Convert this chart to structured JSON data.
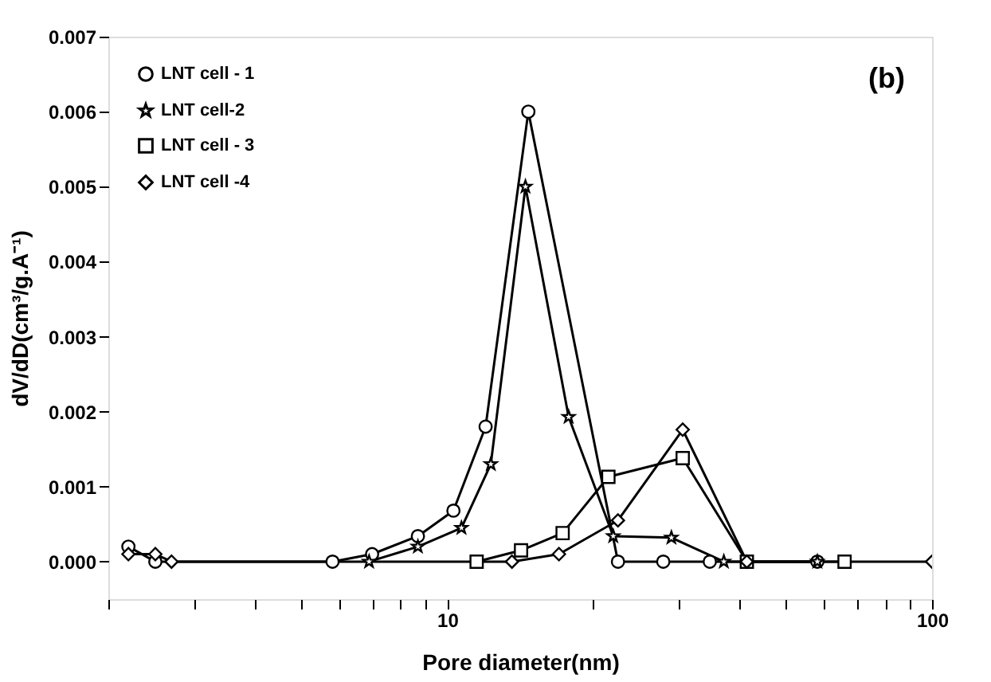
{
  "chart_data": {
    "type": "line",
    "xlabel": "Pore diameter(nm)",
    "ylabel": "dV/dD(cm³/g.A⁻¹)",
    "annotations": [
      "(b)"
    ],
    "log": "x",
    "xlim": [
      2,
      100
    ],
    "ylim": [
      -0.0005,
      0.007
    ],
    "xticks": [
      {
        "value": 2,
        "label": null
      },
      {
        "value": 3,
        "label": null
      },
      {
        "value": 4,
        "label": null
      },
      {
        "value": 5,
        "label": null
      },
      {
        "value": 6,
        "label": null
      },
      {
        "value": 7,
        "label": null
      },
      {
        "value": 8,
        "label": null
      },
      {
        "value": 9,
        "label": null
      },
      10,
      {
        "value": 20,
        "label": null
      },
      {
        "value": 30,
        "label": null
      },
      {
        "value": 40,
        "label": null
      },
      {
        "value": 50,
        "label": null
      },
      {
        "value": 60,
        "label": null
      },
      {
        "value": 70,
        "label": null
      },
      {
        "value": 80,
        "label": null
      },
      {
        "value": 90,
        "label": null
      },
      100
    ],
    "yticks": [
      {
        "value": 0,
        "label": "0.000"
      },
      {
        "value": 0.001,
        "label": "0.001"
      },
      {
        "value": 0.002,
        "label": "0.002"
      },
      {
        "value": 0.003,
        "label": "0.003"
      },
      {
        "value": 0.004,
        "label": "0.004"
      },
      {
        "value": 0.005,
        "label": "0.005"
      },
      {
        "value": 0.006,
        "label": "0.006"
      },
      {
        "value": 0.007,
        "label": "0.007"
      }
    ],
    "grid": false,
    "legend": "top left",
    "line_style": "solid",
    "series": [
      {
        "name": "LNT cell - 1",
        "color": "#000000",
        "marker": "circle",
        "x": [
          2.2,
          2.5,
          5.8,
          7.0,
          8.7,
          10.3,
          12.0,
          14.7,
          22.5,
          27.9,
          34.8,
          58
        ],
        "values": [
          0.0002,
          0,
          0,
          0.0001,
          0.00034,
          0.00068,
          0.0018,
          0.006,
          0,
          0,
          0,
          0
        ]
      },
      {
        "name": "LNT cell-2",
        "color": "#000000",
        "marker": "star",
        "x": [
          6.9,
          8.7,
          10.7,
          12.3,
          14.5,
          17.8,
          22.0,
          29.0,
          37.2,
          58
        ],
        "values": [
          0,
          0.0002,
          0.00045,
          0.0013,
          0.005,
          0.00193,
          0.00034,
          0.00032,
          0,
          0
        ]
      },
      {
        "name": "LNT cell - 3",
        "color": "#000000",
        "marker": "square",
        "x": [
          11.5,
          14.2,
          17.3,
          21.5,
          30.6,
          41.5,
          66
        ],
        "values": [
          0,
          0.00015,
          0.00038,
          0.00113,
          0.00138,
          0,
          0
        ]
      },
      {
        "name": "LNT cell -4",
        "color": "#000000",
        "marker": "diamond",
        "x": [
          2.2,
          2.5,
          2.7,
          13.6,
          17.0,
          22.5,
          30.6,
          41.5,
          100
        ],
        "values": [
          0.0001,
          0.0001,
          0,
          0,
          0.0001,
          0.00055,
          0.00176,
          0,
          0
        ]
      }
    ]
  }
}
